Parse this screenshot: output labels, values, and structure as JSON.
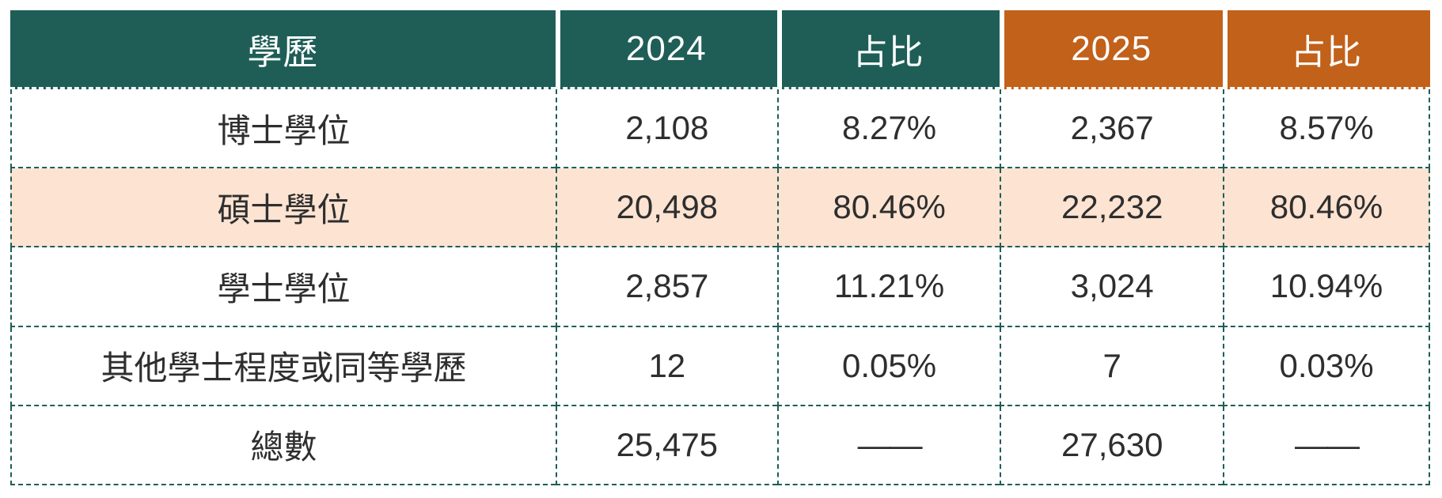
{
  "chart_data": {
    "type": "table",
    "columns": [
      "學歷",
      "2024",
      "占比",
      "2025",
      "占比"
    ],
    "header_groups": [
      "teal",
      "teal",
      "teal",
      "orange",
      "orange"
    ],
    "rows": [
      [
        "博士學位",
        "2,108",
        "8.27%",
        "2,367",
        "8.57%"
      ],
      [
        "碩士學位",
        "20,498",
        "80.46%",
        "22,232",
        "80.46%"
      ],
      [
        "學士學位",
        "2,857",
        "11.21%",
        "3,024",
        "10.94%"
      ],
      [
        "其他學士程度或同等學歷",
        "12",
        "0.05%",
        "7",
        "0.03%"
      ],
      [
        "總數",
        "25,475",
        "——",
        "27,630",
        "——"
      ]
    ],
    "highlight_row_index": 1,
    "no_value_placeholder": "——"
  },
  "colors": {
    "header_teal": "#1E5E57",
    "header_orange": "#C2611A",
    "highlight_row_bg": "#FCE3D2",
    "grid_border": "#1E5E57",
    "header_text": "#FFFFFF",
    "cell_text": "#2E2E2E"
  }
}
